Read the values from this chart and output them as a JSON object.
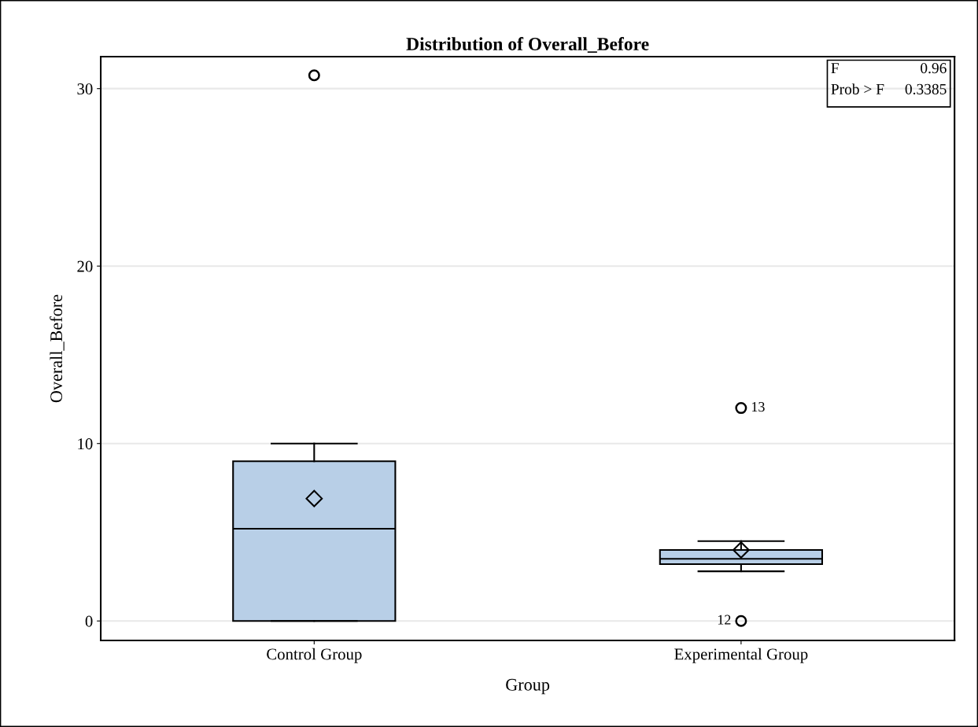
{
  "chart_data": {
    "type": "box",
    "title": "Distribution of Overall_Before",
    "xlabel": "Group",
    "ylabel": "Overall_Before",
    "categories": [
      "Control Group",
      "Experimental Group"
    ],
    "boxes": [
      {
        "low": 0,
        "q1": 0,
        "median": 5.2,
        "q3": 9,
        "high": 10,
        "mean": 6.9,
        "outliers": [
          30.75
        ]
      },
      {
        "low": 2.8,
        "q1": 3.2,
        "median": 3.5,
        "q3": 4,
        "high": 4.5,
        "mean": 4.0,
        "outliers": [
          12,
          0
        ]
      }
    ],
    "color": "#b8cfe7",
    "ylim": [
      -1.1,
      31.8
    ],
    "yticks": [
      0,
      10,
      20,
      30
    ],
    "grid": "y",
    "annotations": [
      "F",
      "0.96",
      "Prob > F",
      "0.3385",
      "13",
      "12"
    ]
  }
}
